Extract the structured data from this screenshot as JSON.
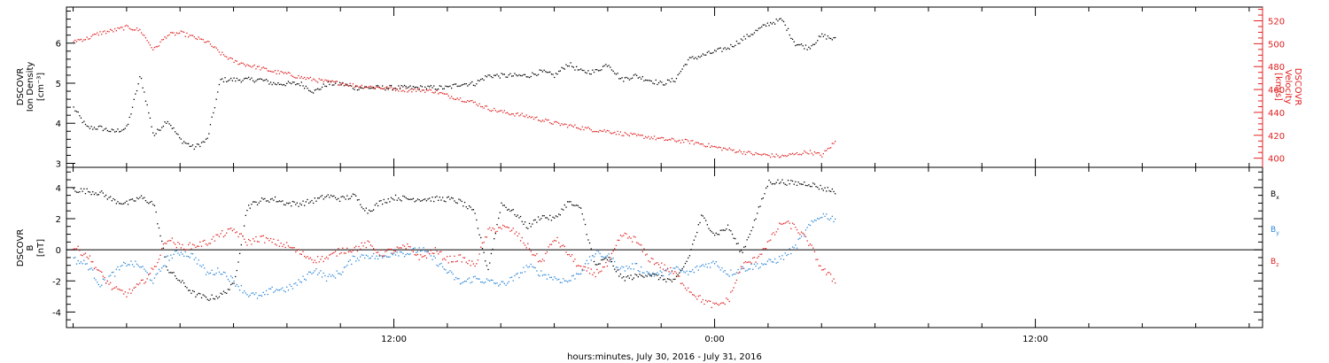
{
  "chart_data": [
    {
      "type": "scatter",
      "panel": "density-velocity",
      "ylabel_left": [
        "DSCOVR",
        "Ion Density",
        "[cm⁻³]"
      ],
      "ylabel_right": [
        "DSCOVR",
        "Velocity",
        "[km/s]"
      ],
      "ylim_left": [
        2.9,
        6.9
      ],
      "ylim_right": [
        392,
        532
      ],
      "yticks_left": [
        "3",
        "4",
        "5",
        "6"
      ],
      "yticks_left_values": [
        3,
        4,
        5,
        6
      ],
      "yticks_right": [
        "400",
        "420",
        "440",
        "460",
        "480",
        "500",
        "520"
      ],
      "yticks_right_values": [
        400,
        420,
        440,
        460,
        480,
        500,
        520
      ],
      "series": [
        {
          "name": "",
          "axis": "left",
          "color": "#000000",
          "x_hours": [
            0,
            0.5,
            1,
            1.5,
            2,
            2.5,
            3,
            3.5,
            4,
            4.5,
            5,
            5.5,
            6,
            6.5,
            7,
            7.5,
            8,
            8.5,
            9,
            9.5,
            10,
            10.5,
            11,
            11.5,
            12,
            12.5,
            13,
            13.5,
            14,
            14.5,
            15,
            15.5,
            16,
            16.5,
            17,
            17.5,
            18,
            18.5,
            19,
            19.5,
            20,
            20.5,
            21,
            21.5,
            22,
            22.5,
            23,
            23.5,
            24,
            24.5,
            25,
            25.5,
            26,
            26.5,
            27,
            27.5,
            28,
            28.5
          ],
          "values": [
            4.4,
            3.9,
            3.9,
            3.8,
            3.9,
            5.2,
            3.7,
            4.1,
            3.6,
            3.4,
            3.6,
            5.1,
            5.1,
            5.1,
            5.1,
            5.0,
            5.0,
            5.0,
            4.8,
            5.0,
            5.0,
            4.9,
            4.9,
            4.9,
            4.9,
            4.9,
            4.9,
            4.9,
            4.9,
            5.0,
            5.0,
            5.2,
            5.2,
            5.2,
            5.2,
            5.3,
            5.2,
            5.5,
            5.3,
            5.3,
            5.5,
            5.1,
            5.2,
            5.1,
            5.0,
            5.1,
            5.6,
            5.7,
            5.8,
            5.9,
            6.1,
            6.3,
            6.5,
            6.6,
            6.0,
            5.9,
            6.2,
            6.1
          ]
        },
        {
          "name": "",
          "axis": "right",
          "color": "#e02020",
          "x_hours": [
            0,
            0.5,
            1,
            1.5,
            2,
            2.5,
            3,
            3.5,
            4,
            4.5,
            5,
            5.5,
            6,
            6.5,
            7,
            7.5,
            8,
            8.5,
            9,
            9.5,
            10,
            10.5,
            11,
            11.5,
            12,
            12.5,
            13,
            13.5,
            14,
            14.5,
            15,
            15.5,
            16,
            16.5,
            17,
            17.5,
            18,
            18.5,
            19,
            19.5,
            20,
            20.5,
            21,
            21.5,
            22,
            22.5,
            23,
            23.5,
            24,
            24.5,
            25,
            25.5,
            26,
            26.5,
            27,
            27.5,
            28,
            28.5
          ],
          "values": [
            503,
            505,
            510,
            512,
            515,
            512,
            495,
            508,
            510,
            506,
            502,
            492,
            485,
            482,
            479,
            476,
            474,
            471,
            469,
            467,
            466,
            464,
            463,
            462,
            461,
            460,
            460,
            459,
            455,
            452,
            449,
            444,
            441,
            439,
            437,
            434,
            431,
            429,
            427,
            425,
            424,
            422,
            420,
            419,
            417,
            416,
            415,
            413,
            410,
            408,
            406,
            404,
            403,
            402,
            404,
            406,
            403,
            415
          ]
        }
      ]
    },
    {
      "type": "scatter",
      "panel": "magnetic-field",
      "ylabel_left": [
        "DSCOVR",
        "B",
        "[nT]"
      ],
      "ylim": [
        -5,
        5.3
      ],
      "yticks": [
        "-4",
        "-2",
        "0",
        "2",
        "4"
      ],
      "yticks_values": [
        -4,
        -2,
        0,
        2,
        4
      ],
      "zero_line": true,
      "series": [
        {
          "name": "Bₓ",
          "color": "#000000",
          "x_hours": [
            0,
            0.5,
            1,
            1.5,
            2,
            2.5,
            3,
            3.5,
            4,
            4.5,
            5,
            5.5,
            6,
            6.5,
            7,
            7.5,
            8,
            8.5,
            9,
            9.5,
            10,
            10.5,
            11,
            11.5,
            12,
            12.5,
            13,
            13.5,
            14,
            14.5,
            15,
            15.5,
            16,
            16.5,
            17,
            17.5,
            18,
            18.5,
            19,
            19.5,
            20,
            20.5,
            21,
            21.5,
            22,
            22.5,
            23,
            23.5,
            24,
            24.5,
            25,
            25.5,
            26,
            26.5,
            27,
            27.5,
            28,
            28.5
          ],
          "values": [
            3.9,
            3.8,
            3.7,
            3.2,
            3.0,
            3.4,
            3.0,
            -1.2,
            -2.0,
            -2.8,
            -3.1,
            -2.9,
            -2.2,
            2.8,
            3.2,
            3.3,
            3.0,
            3.0,
            3.2,
            3.5,
            3.3,
            3.5,
            2.5,
            3.1,
            3.4,
            3.3,
            3.3,
            3.3,
            3.3,
            3.1,
            2.4,
            -1.3,
            3.0,
            2.4,
            1.5,
            2.2,
            2.0,
            3.1,
            2.6,
            -1.0,
            -0.5,
            -1.8,
            -1.7,
            -1.5,
            -1.8,
            -2.0,
            -0.5,
            2.2,
            1.0,
            1.5,
            -0.2,
            2.0,
            4.4,
            4.4,
            4.3,
            4.3,
            4.0,
            3.8
          ]
        },
        {
          "name": "Bᵧ",
          "color": "#2a86d8",
          "x_hours": [
            0,
            0.5,
            1,
            1.5,
            2,
            2.5,
            3,
            3.5,
            4,
            4.5,
            5,
            5.5,
            6,
            6.5,
            7,
            7.5,
            8,
            8.5,
            9,
            9.5,
            10,
            10.5,
            11,
            11.5,
            12,
            12.5,
            13,
            13.5,
            14,
            14.5,
            15,
            15.5,
            16,
            16.5,
            17,
            17.5,
            18,
            18.5,
            19,
            19.5,
            20,
            20.5,
            21,
            21.5,
            22,
            22.5,
            23,
            23.5,
            24,
            24.5,
            25,
            25.5,
            26,
            26.5,
            27,
            27.5,
            28,
            28.5
          ],
          "values": [
            -0.6,
            -0.9,
            -2.2,
            -1.5,
            -0.8,
            -1.0,
            -2.0,
            -0.5,
            -0.1,
            -0.4,
            -1.5,
            -1.3,
            -2.0,
            -2.8,
            -3.0,
            -2.5,
            -2.5,
            -2.0,
            -1.2,
            -1.8,
            -1.4,
            -0.5,
            -0.3,
            -0.5,
            -0.1,
            -0.2,
            0.1,
            -0.6,
            -1.4,
            -2.1,
            -1.8,
            -2.0,
            -2.2,
            -1.8,
            -1.0,
            -1.5,
            -1.8,
            -2.0,
            -1.3,
            -0.2,
            -0.4,
            -1.2,
            -1.0,
            -1.5,
            -1.5,
            -1.2,
            -1.5,
            -1.0,
            -0.8,
            -1.5,
            -1.2,
            -1.0,
            -0.8,
            -0.5,
            0.2,
            1.5,
            2.3,
            2.0
          ]
        },
        {
          "name": "B_z",
          "color": "#e02020",
          "x_hours": [
            0,
            0.5,
            1,
            1.5,
            2,
            2.5,
            3,
            3.5,
            4,
            4.5,
            5,
            5.5,
            6,
            6.5,
            7,
            7.5,
            8,
            8.5,
            9,
            9.5,
            10,
            10.5,
            11,
            11.5,
            12,
            12.5,
            13,
            13.5,
            14,
            14.5,
            15,
            15.5,
            16,
            16.5,
            17,
            17.5,
            18,
            18.5,
            19,
            19.5,
            20,
            20.5,
            21,
            21.5,
            22,
            22.5,
            23,
            23.5,
            24,
            24.5,
            25,
            25.5,
            26,
            26.5,
            27,
            27.5,
            28,
            28.5
          ],
          "values": [
            0.2,
            -0.3,
            -1.5,
            -2.5,
            -2.8,
            -2.2,
            -1.2,
            0.8,
            0.2,
            0.3,
            0.5,
            1.0,
            1.3,
            0.5,
            0.8,
            0.5,
            0.3,
            -0.2,
            -0.6,
            -0.5,
            0.0,
            0.1,
            0.4,
            -0.2,
            0.0,
            0.2,
            -0.5,
            0.0,
            -0.6,
            -0.5,
            -1.0,
            1.2,
            1.5,
            1.2,
            0.2,
            -0.8,
            0.8,
            -0.2,
            -1.2,
            -1.5,
            -0.9,
            1.0,
            0.7,
            -0.5,
            -1.0,
            -1.5,
            -2.5,
            -3.2,
            -3.6,
            -3.2,
            -1.0,
            -0.6,
            0.5,
            1.8,
            1.5,
            0.5,
            -1.2,
            -2.0
          ]
        }
      ]
    }
  ],
  "xaxis": {
    "label": "hours:minutes, July 30, 2016 - July 31, 2016",
    "xlim_hours": [
      -0.25,
      44.5
    ],
    "tick_labels": [
      "12:00",
      "0:00",
      "12:00"
    ],
    "tick_values_hours": [
      12,
      24,
      36
    ],
    "minor_every_hours": 2
  },
  "legend": {
    "bx": "B",
    "bx_sub": "x",
    "by": "B",
    "by_sub": "y",
    "bz": "B",
    "bz_sub": "z"
  }
}
